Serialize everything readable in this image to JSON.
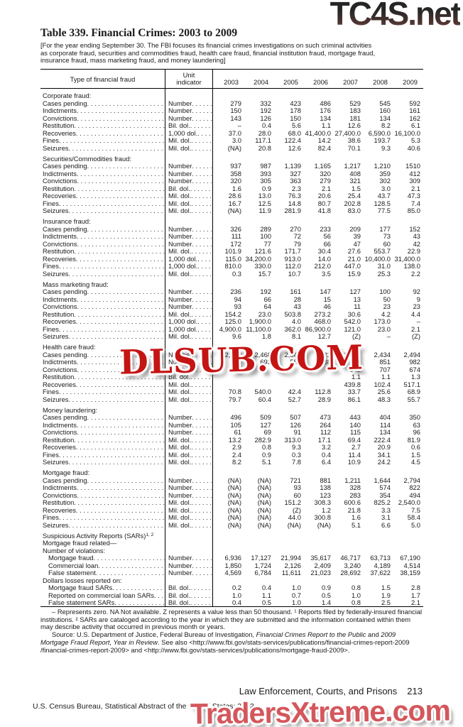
{
  "watermarks": {
    "top": "TC4S.net",
    "middle": "DLSUB.COM",
    "bottom": "TradersXtreme.com"
  },
  "title": "Table 339. Financial Crimes: 2003 to 2009",
  "note": "[For the year ending September 30. The FBI focuses its financial crimes investigations on such criminal activities as corporate fraud, securities and commodities fraud, health care fraud, financial institution fraud, mortgage fraud, insurance fraud, mass marketing fraud, and money laundering]",
  "table": {
    "label_header": "Type of financial fraud",
    "unit_header_line1": "Unit",
    "unit_header_line2": "indicator",
    "years": [
      "2003",
      "2004",
      "2005",
      "2006",
      "2007",
      "2008",
      "2009"
    ],
    "rows": [
      {
        "s": "Corporate fraud:"
      },
      {
        "l": "Cases pending",
        "u": "Number",
        "v": [
          "279",
          "332",
          "423",
          "486",
          "529",
          "545",
          "592"
        ]
      },
      {
        "l": "Indictments",
        "u": "Number",
        "v": [
          "150",
          "192",
          "178",
          "176",
          "183",
          "160",
          "161"
        ]
      },
      {
        "l": "Convictions",
        "u": "Number",
        "v": [
          "143",
          "126",
          "150",
          "134",
          "181",
          "134",
          "162"
        ]
      },
      {
        "l": "Restitution",
        "u": "Bil. dol.",
        "v": [
          "–",
          "0.4",
          "5.6",
          "1.1",
          "12.6",
          "8.2",
          "6.1"
        ]
      },
      {
        "l": "Recoveries",
        "u": "1,000 dol.",
        "v": [
          "37.0",
          "28.0",
          "68.0",
          "41,400.0",
          "27,400.0",
          "6,590.0",
          "16,100.0"
        ]
      },
      {
        "l": "Fines",
        "u": "Mil. dol.",
        "v": [
          "3.0",
          "117.1",
          "122.4",
          "14.2",
          "38.6",
          "193.7",
          "5.3"
        ]
      },
      {
        "l": "Seizures",
        "u": "Mil. dol.",
        "v": [
          "(NA)",
          "20.8",
          "12.6",
          "82.4",
          "70.1",
          "9.3",
          "40.6"
        ]
      },
      {
        "s": "Securities/Commodities fraud:"
      },
      {
        "l": "Cases pending",
        "u": "Number",
        "v": [
          "937",
          "987",
          "1,139",
          "1,165",
          "1,217",
          "1,210",
          "1510"
        ]
      },
      {
        "l": "Indictments",
        "u": "Number",
        "v": [
          "358",
          "393",
          "327",
          "320",
          "408",
          "359",
          "412"
        ]
      },
      {
        "l": "Convictions",
        "u": "Number",
        "v": [
          "320",
          "305",
          "363",
          "279",
          "321",
          "302",
          "309"
        ]
      },
      {
        "l": "Restitution",
        "u": "Bil. dol.",
        "v": [
          "1.6",
          "0.9",
          "2.3",
          "2.1",
          "1.5",
          "3.0",
          "2.1"
        ]
      },
      {
        "l": "Recoveries",
        "u": "Mil. dol.",
        "v": [
          "28.6",
          "13.0",
          "76.3",
          "20.6",
          "25.4",
          "43.7",
          "47.3"
        ]
      },
      {
        "l": "Fines",
        "u": "Mil. dol.",
        "v": [
          "16.7",
          "12.5",
          "14.8",
          "80.7",
          "202.8",
          "128.5",
          "7.4"
        ]
      },
      {
        "l": "Seizures",
        "u": "Mil. dol.",
        "v": [
          "(NA)",
          "11.9",
          "281.9",
          "41.8",
          "83.0",
          "77.5",
          "85.0"
        ]
      },
      {
        "s": "Insurance fraud:"
      },
      {
        "l": "Cases pending",
        "u": "Number",
        "v": [
          "326",
          "289",
          "270",
          "233",
          "209",
          "177",
          "152"
        ]
      },
      {
        "l": "Indictments",
        "u": "Number",
        "v": [
          "111",
          "100",
          "72",
          "56",
          "39",
          "73",
          "43"
        ]
      },
      {
        "l": "Convictions",
        "u": "Number",
        "v": [
          "172",
          "77",
          "79",
          "66",
          "47",
          "60",
          "42"
        ]
      },
      {
        "l": "Restitution",
        "u": "Mil. dol.",
        "v": [
          "101.9",
          "121.6",
          "171.7",
          "30.4",
          "27.6",
          "553.7",
          "22.9"
        ]
      },
      {
        "l": "Recoveries",
        "u": "1,000 dol.",
        "v": [
          "115.0",
          "34,200.0",
          "913.0",
          "14.0",
          "21.0",
          "10,400.0",
          "31,400.0"
        ]
      },
      {
        "l": "Fines",
        "u": "1,000 dol.",
        "v": [
          "810.0",
          "330.0",
          "112.0",
          "212.0",
          "447.0",
          "31.0",
          "138.0"
        ]
      },
      {
        "l": "Seizures",
        "u": "Mil. dol.",
        "v": [
          "0.3",
          "15.7",
          "10.7",
          "3.5",
          "15.9",
          "25.3",
          "2.2"
        ]
      },
      {
        "s": "Mass marketing fraud:"
      },
      {
        "l": "Cases pending",
        "u": "Number",
        "v": [
          "236",
          "192",
          "161",
          "147",
          "127",
          "100",
          "92"
        ]
      },
      {
        "l": "Indictments",
        "u": "Number",
        "v": [
          "94",
          "66",
          "28",
          "15",
          "13",
          "50",
          "9"
        ]
      },
      {
        "l": "Convictions",
        "u": "Number",
        "v": [
          "93",
          "64",
          "43",
          "46",
          "11",
          "23",
          "23"
        ]
      },
      {
        "l": "Restitution",
        "u": "Mil. dol.",
        "v": [
          "154.2",
          "23.0",
          "503.8",
          "273.2",
          "30.6",
          "4.2",
          "4.4"
        ]
      },
      {
        "l": "Recoveries",
        "u": "1,000 dol.",
        "v": [
          "125.0",
          "1,900.0",
          "4.0",
          "468.0",
          "542.0",
          "173.0",
          "–"
        ]
      },
      {
        "l": "Fines",
        "u": "1,000 dol.",
        "v": [
          "4,900.0",
          "11,100.0",
          "362.0",
          "86,900.0",
          "121.0",
          "23.0",
          "2.1"
        ]
      },
      {
        "l": "Seizures",
        "u": "Mil. dol.",
        "v": [
          "9.6",
          "1.8",
          "8.1",
          "12.7",
          "(Z)",
          "–",
          "(Z)"
        ]
      },
      {
        "s": "Health care fraud:"
      },
      {
        "l": "Cases pending",
        "u": "Number",
        "v": [
          "2,262",
          "2,468",
          "2,547",
          "2,423",
          "2,493",
          "2,434",
          "2,494"
        ]
      },
      {
        "l": "Indictments",
        "u": "Number",
        "v": [
          "523",
          "693",
          "589",
          "588",
          "847",
          "851",
          "982"
        ]
      },
      {
        "l": "Convictions",
        "u": "Number",
        "v": [
          "",
          "",
          "",
          "",
          "642",
          "707",
          "674"
        ]
      },
      {
        "l": "Restitution",
        "u": "Bil. dol.",
        "v": [
          "",
          "",
          "",
          "",
          "1.1",
          "1.1",
          "1.3"
        ]
      },
      {
        "l": "Recoveries",
        "u": "Mil. dol.",
        "v": [
          "",
          "",
          "",
          "",
          "439.8",
          "102.4",
          "517.1"
        ]
      },
      {
        "l": "Fines",
        "u": "Mil. dol.",
        "v": [
          "70.8",
          "540.0",
          "42.4",
          "112.8",
          "33.7",
          "25.6",
          "68.9"
        ]
      },
      {
        "l": "Seizures",
        "u": "Mil. dol.",
        "v": [
          "79.7",
          "60.4",
          "52.7",
          "28.9",
          "86.1",
          "48.3",
          "55.7"
        ]
      },
      {
        "s": "Money laundering:"
      },
      {
        "l": "Cases pending",
        "u": "Number",
        "v": [
          "496",
          "509",
          "507",
          "473",
          "443",
          "404",
          "350"
        ]
      },
      {
        "l": "Indictments",
        "u": "Number",
        "v": [
          "105",
          "127",
          "126",
          "264",
          "140",
          "114",
          "63"
        ]
      },
      {
        "l": "Convictions",
        "u": "Number",
        "v": [
          "61",
          "69",
          "91",
          "112",
          "115",
          "134",
          "96"
        ]
      },
      {
        "l": "Restitution",
        "u": "Mil. dol.",
        "v": [
          "13.2",
          "282.9",
          "313.0",
          "17.1",
          "69.4",
          "222.4",
          "81.9"
        ]
      },
      {
        "l": "Recoveries",
        "u": "Mil. dol.",
        "v": [
          "2.9",
          "0.8",
          "9.3",
          "3.2",
          "2.7",
          "20.9",
          "0.6"
        ]
      },
      {
        "l": "Fines",
        "u": "Mil. dol.",
        "v": [
          "2.4",
          "0.9",
          "0.3",
          "0.4",
          "11.4",
          "34.1",
          "1.5"
        ]
      },
      {
        "l": "Seizures",
        "u": "Mil. dol.",
        "v": [
          "8.2",
          "5.1",
          "7.8",
          "6.4",
          "10.9",
          "24.2",
          "4.5"
        ]
      },
      {
        "s": "Mortgage fraud:"
      },
      {
        "l": "Cases pending",
        "u": "Number",
        "v": [
          "(NA)",
          "(NA)",
          "721",
          "881",
          "1,211",
          "1,644",
          "2,794"
        ]
      },
      {
        "l": "Indictments",
        "u": "Number",
        "v": [
          "(NA)",
          "(NA)",
          "93",
          "138",
          "328",
          "574",
          "822"
        ]
      },
      {
        "l": "Convictions",
        "u": "Number",
        "v": [
          "(NA)",
          "(NA)",
          "60",
          "123",
          "283",
          "354",
          "494"
        ]
      },
      {
        "l": "Restitution",
        "u": "Mil. dol.",
        "v": [
          "(NA)",
          "(NA)",
          "151.2",
          "308.3",
          "600.6",
          "825.2",
          "2,540.0"
        ]
      },
      {
        "l": "Recoveries",
        "u": "Mil. dol.",
        "v": [
          "(NA)",
          "(NA)",
          "(Z)",
          "1.2",
          "21.8",
          "3.3",
          "7.5"
        ]
      },
      {
        "l": "Fines",
        "u": "Mil. dol.",
        "v": [
          "(NA)",
          "(NA)",
          "44.0",
          "300.8",
          "1.6",
          "3.1",
          "58.4"
        ]
      },
      {
        "l": "Seizures",
        "u": "Mil. dol.",
        "v": [
          "(NA)",
          "(NA)",
          "(NA)",
          "(NA)",
          "5.1",
          "6.6",
          "5.0"
        ]
      },
      {
        "s": "Suspicious Activity Reports (SARs)",
        "sup": "1, 2"
      },
      {
        "p": "Mortgage fraud related—"
      },
      {
        "p": "Number of violations:"
      },
      {
        "l": "Mortgage fraud",
        "u": "Number",
        "i": 1,
        "v": [
          "6,936",
          "17,127",
          "21,994",
          "35,617",
          "46,717",
          "63,713",
          "67,190"
        ]
      },
      {
        "l": "Commercial loan",
        "u": "Number",
        "i": 1,
        "v": [
          "1,850",
          "1,724",
          "2,126",
          "2,409",
          "3,240",
          "4,189",
          "4,514"
        ]
      },
      {
        "l": "False statement",
        "u": "Number",
        "i": 1,
        "v": [
          "4,569",
          "6,784",
          "11,611",
          "21,023",
          "28,692",
          "37,622",
          "38,159"
        ]
      },
      {
        "p": "Dollars losses reported on:"
      },
      {
        "l": "Mortgage fraud SARs",
        "u": "Bil. dol.",
        "i": 1,
        "v": [
          "0.2",
          "0.4",
          "1.0",
          "0.9",
          "0.8",
          "1.5",
          "2.8"
        ]
      },
      {
        "l": "Reported on commercial loan SARs",
        "u": "Bil. dol.",
        "i": 1,
        "v": [
          "1.0",
          "1.1",
          "0.7",
          "0.5",
          "1.0",
          "1.9",
          "1.7"
        ]
      },
      {
        "l": "False statement SARs",
        "u": "Bil. dol.",
        "i": 1,
        "v": [
          "0.4",
          "0.5",
          "1.0",
          "1.4",
          "0.8",
          "2.5",
          "2.1"
        ]
      }
    ]
  },
  "footnote": "– Represents zero. NA Not available. Z represents a value less than 50 thousand. ¹ Reports filed by federally-insured financial institutions. ² SARs are cataloged according to the year in which they are submitted and the information contained within them may describe activity that occurred in previous month or years.",
  "source_segments": [
    {
      "t": "Source: U.S. Department of Justice, Federal Bureau of Investigation, "
    },
    {
      "t": "Financial Crimes Report to the Public",
      "i": true
    },
    {
      "t": " and "
    },
    {
      "t": "2009 Mortgage Fraud Report, Year in Review",
      "i": true
    },
    {
      "t": ". See also <http://www.fbi.gov/stats-services/publications/financial-crimes-report-2009 /financial-crimes-report-2009> and <http://www.fbi.gov/stats-services/publications/mortgage-fraud-2009>."
    }
  ],
  "footer": {
    "section_title": "Law Enforcement, Courts, and Prisons",
    "page_number": "213",
    "credit": "U.S. Census Bureau, Statistical Abstract of the United States: 2012"
  }
}
